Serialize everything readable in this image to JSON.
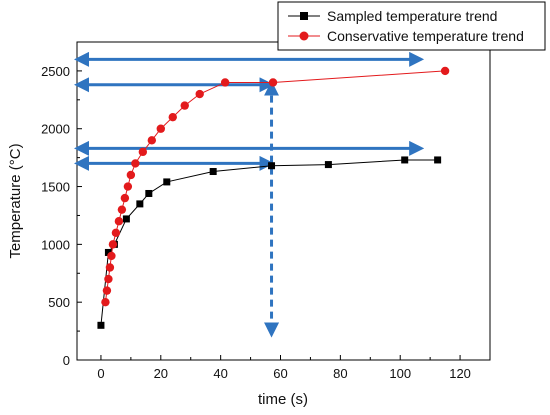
{
  "chart_data": {
    "type": "line",
    "title": "",
    "xlabel": "time (s)",
    "ylabel": "Temperature (°C)",
    "xlim": [
      -8,
      130
    ],
    "ylim": [
      0,
      2750
    ],
    "x_ticks": [
      0,
      20,
      40,
      60,
      80,
      100,
      120
    ],
    "x_tick_labels": [
      "0",
      "20",
      "40",
      "60",
      "80",
      "100",
      "120"
    ],
    "y_ticks": [
      0,
      500,
      1000,
      1500,
      2000,
      2500
    ],
    "y_tick_labels": [
      "0",
      "500",
      "1000",
      "1500",
      "2000",
      "2500"
    ],
    "grid": false,
    "legend_position": "top-right",
    "series": [
      {
        "name": "Sampled temperature trend",
        "color": "#000000",
        "marker": "square",
        "x": [
          0,
          2.5,
          4.5,
          8.5,
          13,
          16,
          22,
          37.5,
          57,
          76,
          101.5,
          112.5
        ],
        "y": [
          300,
          930,
          1000,
          1220,
          1350,
          1440,
          1540,
          1630,
          1680,
          1690,
          1730,
          1730
        ]
      },
      {
        "name": "Conservative temperature trend",
        "color": "#e31a1c",
        "marker": "circle",
        "x": [
          1.5,
          2,
          2.5,
          3,
          3.5,
          4,
          5,
          6,
          7,
          8,
          9,
          10,
          11.5,
          14,
          17,
          20,
          24,
          28,
          33,
          41.5,
          57.5,
          115
        ],
        "y": [
          500,
          600,
          700,
          800,
          900,
          1000,
          1100,
          1200,
          1300,
          1400,
          1500,
          1600,
          1700,
          1800,
          1900,
          2000,
          2100,
          2200,
          2300,
          2400,
          2400,
          2500
        ]
      }
    ],
    "annotations": {
      "arrow_color": "#2f74c0",
      "horizontal_double_arrows": [
        {
          "y": 2600,
          "x_from": -8,
          "x_to": 107
        },
        {
          "y": 1830,
          "x_from": -8,
          "x_to": 107
        }
      ],
      "horizontal_single_arrows": [
        {
          "y": 2380,
          "x_from": -8,
          "x_to": 57
        },
        {
          "y": 1700,
          "x_from": -8,
          "x_to": 57
        }
      ],
      "vertical_dashed_double_arrow": {
        "x": 57,
        "y_from": 2390,
        "y_to": 220
      }
    }
  }
}
